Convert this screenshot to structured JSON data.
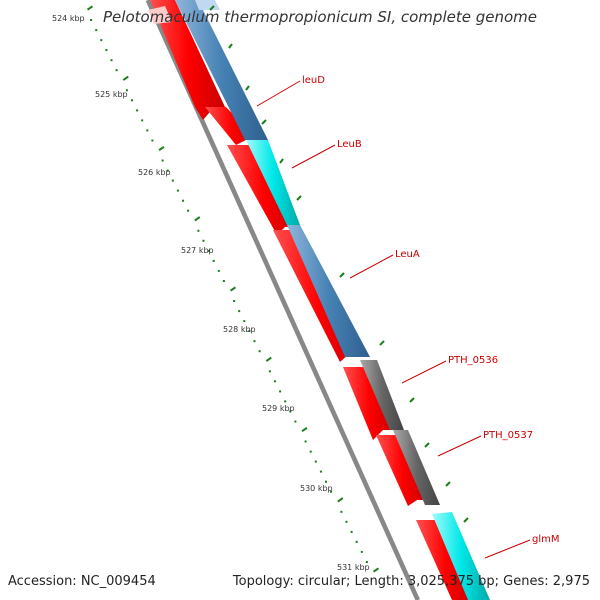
{
  "title": "Pelotomaculum thermopropionicum SI, complete genome",
  "accession": "Accession: NC_009454",
  "summary": "Topology: circular; Length: 3,025,375 bp; Genes: 2,975",
  "ruler_labels": [
    "524 kbp",
    "525 kbp",
    "526 kbp",
    "527 kbp",
    "528 kbp",
    "529 kbp",
    "530 kbp",
    "531 kbp"
  ],
  "gene_labels": [
    "leuD",
    "LeuB",
    "LeuA",
    "PTH_0536",
    "PTH_0537",
    "glmM"
  ],
  "colors": {
    "cds": "#ff0000",
    "backbone": "#888888",
    "steelblue": "#4682b4",
    "cyan": "#00e0e0",
    "grey": "#666666",
    "ticks": "#1a7f1a",
    "labels": "#cc0000",
    "text": "#333333"
  }
}
